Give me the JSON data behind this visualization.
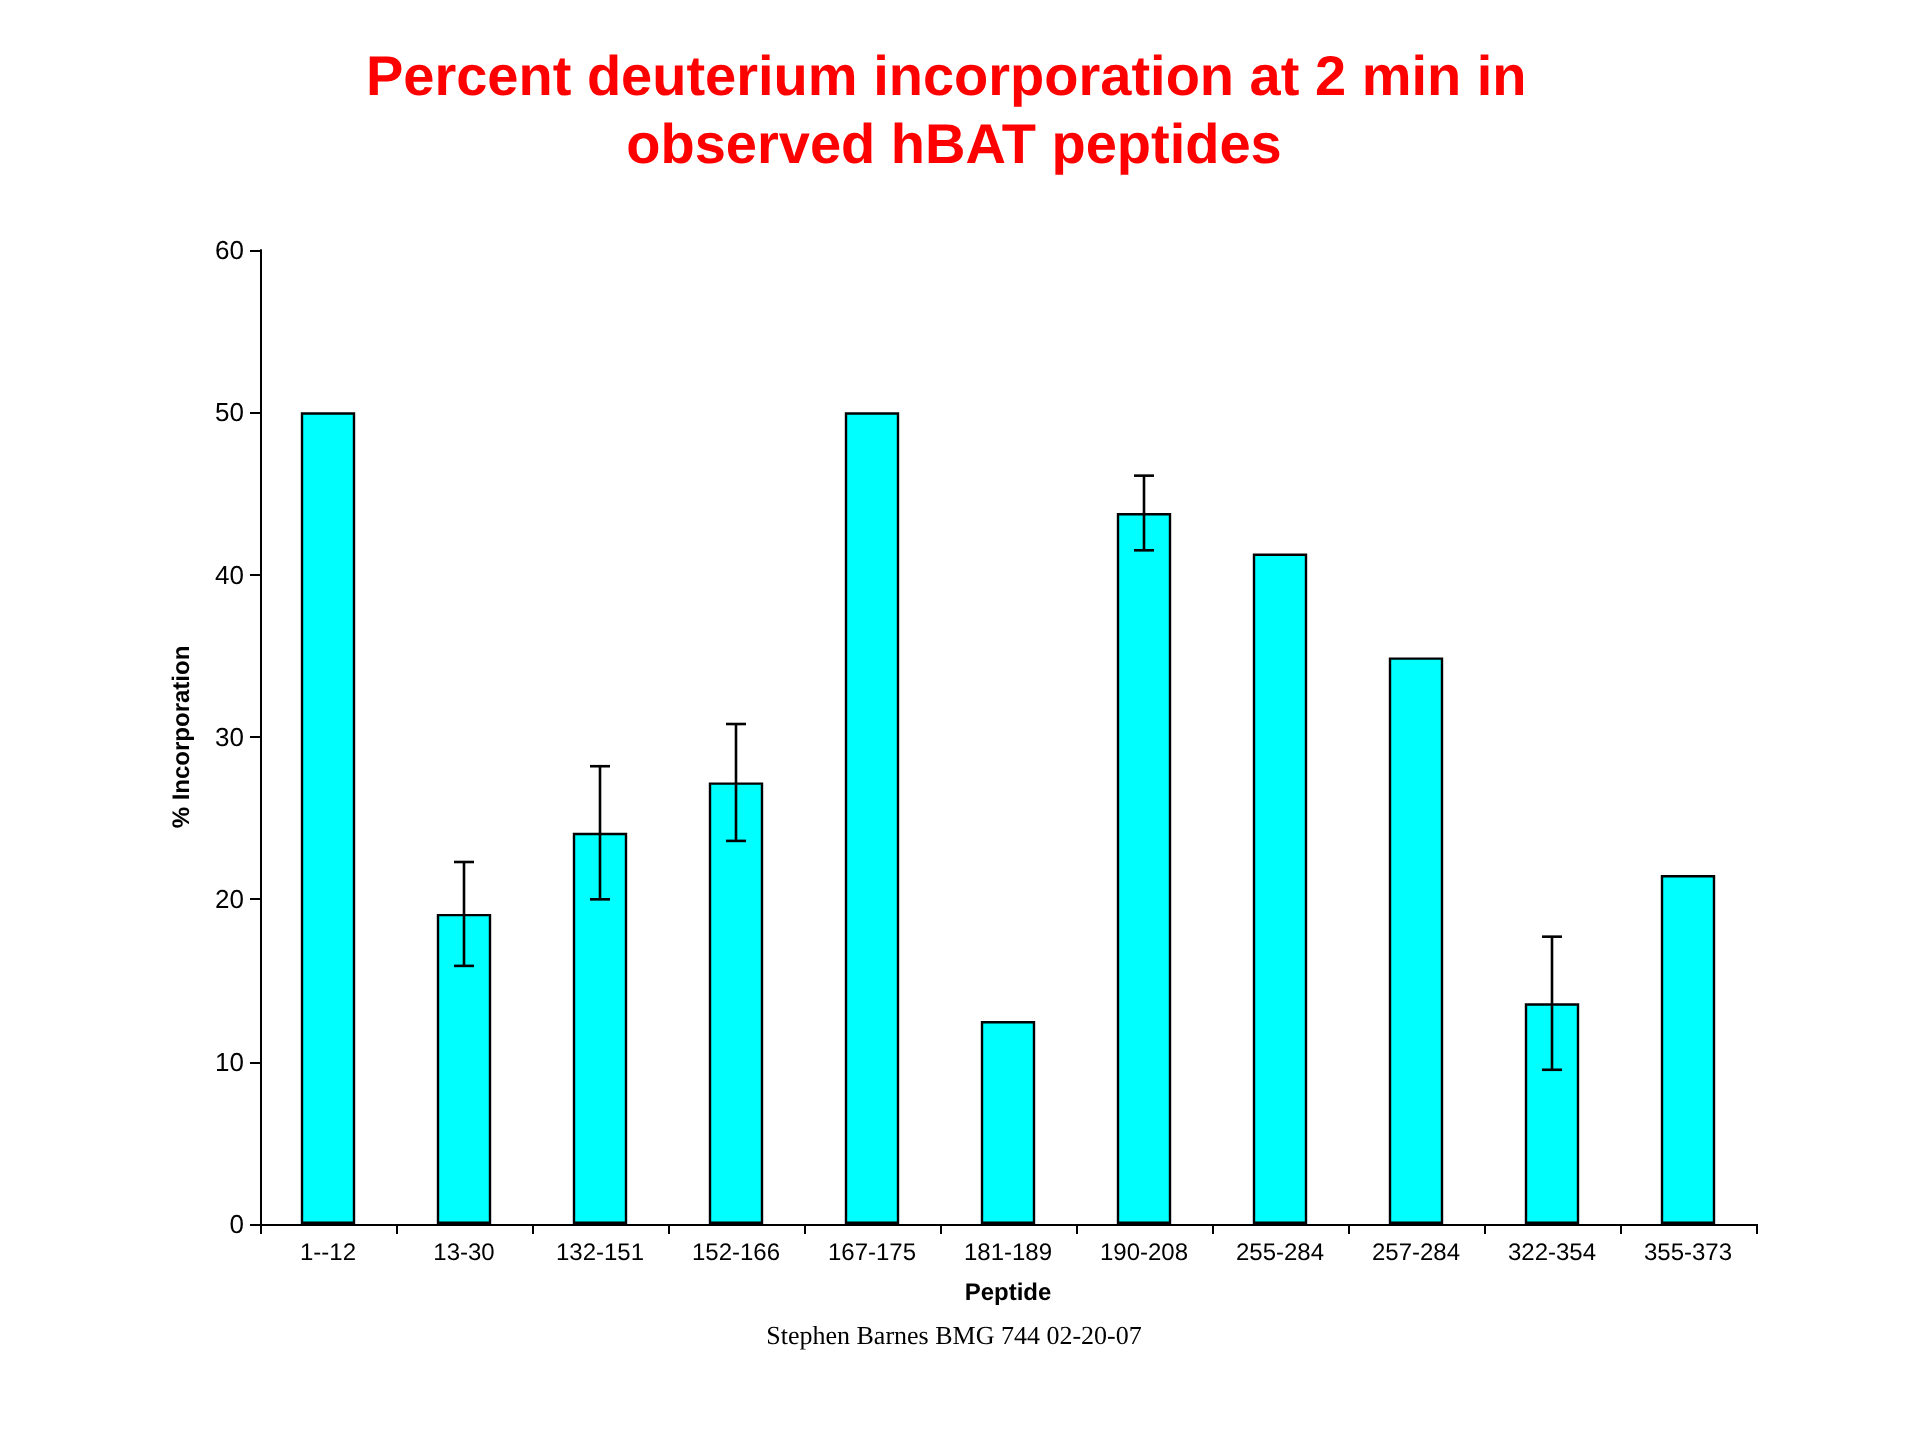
{
  "chart_data": {
    "type": "bar",
    "title": "Percent deuterium incorporation at 2 min in observed hBAT peptides",
    "xlabel": "Peptide",
    "ylabel": "% Incorporation",
    "annotations": [
      "Stephen Barnes BMG 744 02-20-07"
    ],
    "categories": [
      "1--12",
      "13-30",
      "132-151",
      "152-166",
      "167-175",
      "181-189",
      "190-208",
      "255-284",
      "257-284",
      "322-354",
      "355-373"
    ],
    "values": [
      50.0,
      19.1,
      24.1,
      27.2,
      50.0,
      12.5,
      43.8,
      41.3,
      34.9,
      13.6,
      21.5
    ],
    "errors": [
      null,
      3.2,
      4.1,
      3.6,
      null,
      null,
      2.3,
      null,
      null,
      4.1,
      null
    ],
    "color": "#00ffff",
    "ylim": [
      0,
      60
    ],
    "yticks": [
      0,
      10,
      20,
      30,
      40,
      50,
      60
    ],
    "grid": false
  }
}
